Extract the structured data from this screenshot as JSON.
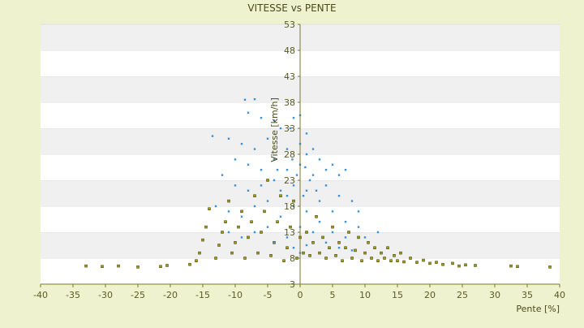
{
  "chart_data": {
    "type": "scatter",
    "title": "VITESSE vs PENTE",
    "xlabel": "Pente [%]",
    "ylabel": "Vitesse [km/h]",
    "xlim": [
      -40,
      40
    ],
    "ylim": [
      3,
      53
    ],
    "x_ticks": [
      -40,
      -35,
      -30,
      -25,
      -20,
      -15,
      -10,
      -5,
      0,
      5,
      10,
      15,
      20,
      25,
      30,
      35,
      40
    ],
    "y_ticks": [
      3,
      8,
      13,
      18,
      23,
      28,
      33,
      38,
      43,
      48,
      53
    ],
    "grid": "horizontal bands",
    "legend": "none",
    "series": [
      {
        "color": "#8a8a10",
        "points": [
          [
            -33,
            6.5
          ],
          [
            -30.5,
            6.4
          ],
          [
            -28,
            6.5
          ],
          [
            -25,
            6.3
          ],
          [
            -21.5,
            6.4
          ],
          [
            -20.5,
            6.6
          ],
          [
            -17,
            6.8
          ],
          [
            -16,
            7.5
          ],
          [
            -15.5,
            9
          ],
          [
            -15,
            11.5
          ],
          [
            -14.5,
            14
          ],
          [
            -14,
            17.5
          ],
          [
            -13,
            8
          ],
          [
            -12.5,
            10.5
          ],
          [
            -12,
            13
          ],
          [
            -11.5,
            15
          ],
          [
            -11,
            19
          ],
          [
            -10.5,
            9
          ],
          [
            -10,
            11
          ],
          [
            -9.5,
            14
          ],
          [
            -9,
            17
          ],
          [
            -8.5,
            8
          ],
          [
            -8,
            12
          ],
          [
            -7.5,
            15
          ],
          [
            -7,
            20
          ],
          [
            -6.5,
            9
          ],
          [
            -6,
            13
          ],
          [
            -5.5,
            17
          ],
          [
            -5,
            23
          ],
          [
            -4.5,
            8.5
          ],
          [
            -4,
            11
          ],
          [
            -3.5,
            15
          ],
          [
            -3,
            20
          ],
          [
            -2.5,
            7.5
          ],
          [
            -2,
            10
          ],
          [
            -1.5,
            14
          ],
          [
            -1,
            19
          ],
          [
            -0.5,
            8
          ],
          [
            0,
            12
          ],
          [
            0.5,
            9
          ],
          [
            1,
            13
          ],
          [
            1.5,
            8.5
          ],
          [
            2,
            11
          ],
          [
            2.5,
            16
          ],
          [
            3,
            9
          ],
          [
            3.5,
            12
          ],
          [
            4,
            8
          ],
          [
            4.5,
            10
          ],
          [
            5,
            14
          ],
          [
            5.5,
            8.5
          ],
          [
            6,
            11
          ],
          [
            6.5,
            7.5
          ],
          [
            7,
            10
          ],
          [
            7.5,
            13
          ],
          [
            8,
            8
          ],
          [
            8.5,
            9.5
          ],
          [
            9,
            12
          ],
          [
            9.5,
            7.5
          ],
          [
            10,
            9
          ],
          [
            10.5,
            11
          ],
          [
            11,
            8
          ],
          [
            11.5,
            10
          ],
          [
            12,
            7.5
          ],
          [
            12.5,
            9
          ],
          [
            13,
            8
          ],
          [
            13.5,
            10
          ],
          [
            14,
            7.5
          ],
          [
            14.5,
            8.5
          ],
          [
            15,
            7.5
          ],
          [
            15.5,
            9
          ],
          [
            16,
            7.3
          ],
          [
            17,
            8
          ],
          [
            18,
            7.2
          ],
          [
            19,
            7.6
          ],
          [
            20,
            7
          ],
          [
            21,
            7.2
          ],
          [
            22,
            6.8
          ],
          [
            23.5,
            7
          ],
          [
            24.5,
            6.5
          ],
          [
            25.5,
            6.7
          ],
          [
            27,
            6.6
          ],
          [
            32.5,
            6.5
          ],
          [
            33.5,
            6.4
          ],
          [
            38.5,
            6.3
          ]
        ]
      },
      {
        "color": "#3b8fd6",
        "points": [
          [
            -8.5,
            38.5
          ],
          [
            -7,
            38.6
          ],
          [
            -8,
            36
          ],
          [
            -6,
            35
          ],
          [
            -4,
            34.5
          ],
          [
            -13.5,
            31.5
          ],
          [
            -11,
            31
          ],
          [
            -9,
            30
          ],
          [
            -7,
            29
          ],
          [
            -5,
            31
          ],
          [
            -3,
            33
          ],
          [
            -1,
            35
          ],
          [
            0,
            35.5
          ],
          [
            -1.5,
            33
          ],
          [
            1,
            32
          ],
          [
            2,
            29
          ],
          [
            3,
            27
          ],
          [
            4,
            25
          ],
          [
            5,
            26
          ],
          [
            6,
            24
          ],
          [
            7,
            25
          ],
          [
            -10,
            27
          ],
          [
            -8,
            26
          ],
          [
            -6,
            25
          ],
          [
            -4,
            27
          ],
          [
            -2,
            29
          ],
          [
            0,
            30
          ],
          [
            1,
            28
          ],
          [
            -12,
            24
          ],
          [
            -10,
            22
          ],
          [
            -8,
            21
          ],
          [
            -6,
            22
          ],
          [
            -4,
            23
          ],
          [
            -2,
            25
          ],
          [
            0,
            26
          ],
          [
            2,
            24
          ],
          [
            4,
            22
          ],
          [
            6,
            20
          ],
          [
            8,
            19
          ],
          [
            9,
            17
          ],
          [
            -13,
            18
          ],
          [
            -11,
            17
          ],
          [
            -9,
            16
          ],
          [
            -7,
            18
          ],
          [
            -5,
            19
          ],
          [
            -3,
            21
          ],
          [
            -1,
            22
          ],
          [
            1,
            21
          ],
          [
            3,
            19
          ],
          [
            5,
            17
          ],
          [
            7,
            15
          ],
          [
            9,
            14
          ],
          [
            10,
            12
          ],
          [
            12,
            13
          ],
          [
            -11,
            13
          ],
          [
            -9,
            12
          ],
          [
            -7,
            13
          ],
          [
            -5,
            14
          ],
          [
            -3,
            16
          ],
          [
            -1,
            18
          ],
          [
            1,
            17
          ],
          [
            3,
            15
          ],
          [
            5,
            13
          ],
          [
            7,
            12
          ],
          [
            -4,
            11
          ],
          [
            -2,
            12
          ],
          [
            0,
            14
          ],
          [
            2,
            13
          ],
          [
            4,
            11
          ],
          [
            6,
            10
          ],
          [
            8,
            9.5
          ],
          [
            -1,
            10
          ],
          [
            0,
            9
          ],
          [
            1,
            10.5
          ],
          [
            -2,
            20
          ],
          [
            -0.5,
            24
          ],
          [
            0.5,
            20
          ],
          [
            1.5,
            23
          ],
          [
            2.5,
            21
          ],
          [
            -3.5,
            25
          ],
          [
            -1.2,
            27
          ],
          [
            0.8,
            25.5
          ]
        ]
      }
    ]
  }
}
